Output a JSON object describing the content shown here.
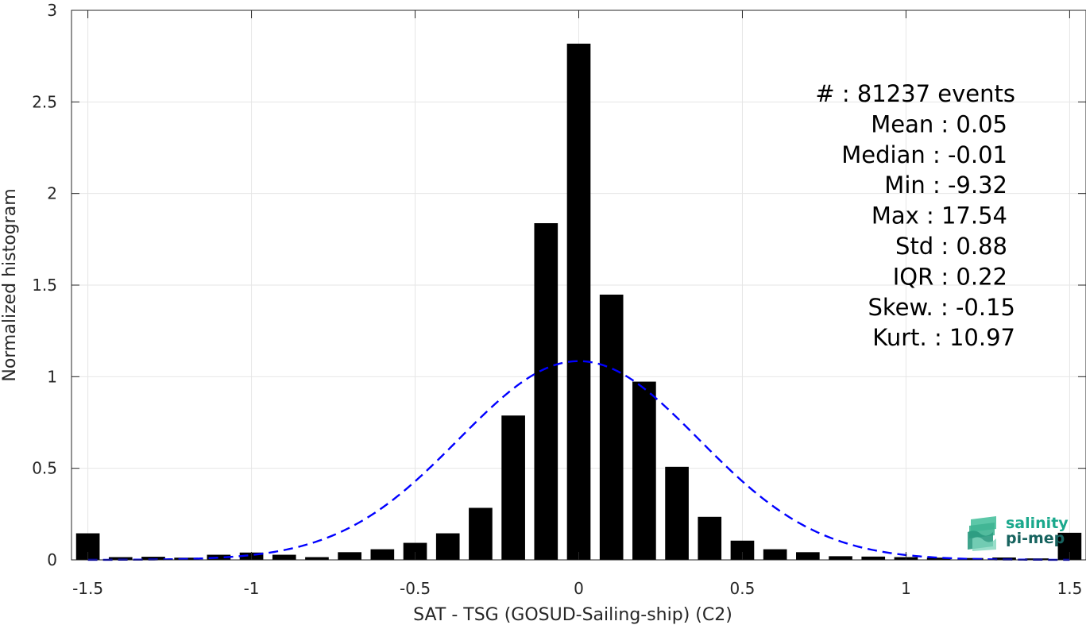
{
  "chart_data": {
    "type": "bar",
    "xlabel": "SAT - TSG (GOSUD-Sailing-ship) (C2)",
    "ylabel": "Normalized histogram",
    "xlim": [
      -1.55,
      1.55
    ],
    "ylim": [
      0,
      3
    ],
    "grid": true,
    "bar_color": "#000000",
    "xticks": [
      -1.5,
      -1,
      -0.5,
      0,
      0.5,
      1,
      1.5
    ],
    "xtick_labels": [
      "-1.5",
      "-1",
      "-0.5",
      "0",
      "0.5",
      "1",
      "1.5"
    ],
    "yticks": [
      0,
      0.5,
      1,
      1.5,
      2,
      2.5,
      3
    ],
    "ytick_labels": [
      "0",
      "0.5",
      "1",
      "1.5",
      "2",
      "2.5",
      "3"
    ],
    "bin_centers": [
      -1.5,
      -1.4,
      -1.3,
      -1.2,
      -1.1,
      -1.0,
      -0.9,
      -0.8,
      -0.7,
      -0.6,
      -0.5,
      -0.4,
      -0.3,
      -0.2,
      -0.1,
      0.0,
      0.1,
      0.2,
      0.3,
      0.4,
      0.5,
      0.6,
      0.7,
      0.8,
      0.9,
      1.0,
      1.1,
      1.2,
      1.3,
      1.4,
      1.5
    ],
    "values": [
      0.145,
      0.015,
      0.017,
      0.012,
      0.028,
      0.04,
      0.028,
      0.015,
      0.042,
      0.058,
      0.093,
      0.145,
      0.284,
      0.788,
      1.838,
      2.818,
      1.448,
      0.973,
      0.508,
      0.235,
      0.105,
      0.058,
      0.042,
      0.02,
      0.018,
      0.015,
      0.012,
      0.01,
      0.013,
      0.008,
      0.148
    ],
    "fit_curve": {
      "type": "normal",
      "mean": 0.0,
      "peak": 1.085,
      "sigma": 0.367,
      "color": "#0000ff",
      "style": "dashed"
    },
    "annotations": [
      "#  : 81237 events",
      "Mean : 0.05",
      "Median : -0.01",
      "Min : -9.32",
      "Max : 17.54",
      "Std : 0.88",
      "IQR : 0.22",
      "Skew. : -0.15",
      "Kurt. : 10.97"
    ]
  },
  "logo": {
    "line1": "salinity",
    "line2": "pi-mep",
    "color_line1": "#1aa88c",
    "color_line2": "#17635f"
  }
}
